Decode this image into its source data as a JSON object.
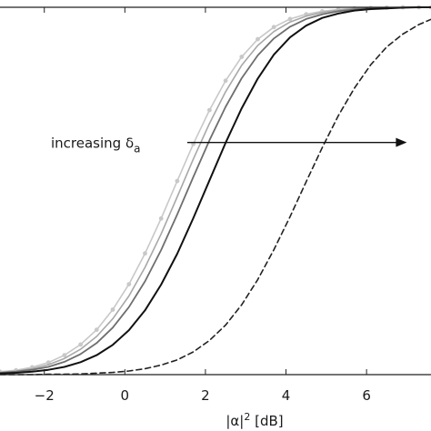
{
  "chart_data": {
    "type": "line",
    "xlabel_main": "|α|",
    "xlabel_sup": "2",
    "xlabel_unit": " [dB]",
    "xlim": [
      -3.1,
      7.6
    ],
    "ylim": [
      0,
      1
    ],
    "x_ticks": [
      -2,
      0,
      2,
      4,
      6
    ],
    "x_tick_labels": [
      "−2",
      "0",
      "2",
      "4",
      "6"
    ],
    "grid": false,
    "annotation": {
      "text": "increasing δ",
      "subscript": "a",
      "arrow_from": [
        1.55,
        0.632
      ],
      "arrow_to": [
        7.0,
        0.632
      ]
    },
    "series": [
      {
        "color": "#c8c8c8",
        "style": "solid",
        "markers": true,
        "width": 1.6,
        "x": [
          -3.1,
          -2.7,
          -2.3,
          -1.9,
          -1.5,
          -1.1,
          -0.7,
          -0.3,
          0.1,
          0.5,
          0.9,
          1.3,
          1.7,
          2.1,
          2.5,
          2.9,
          3.3,
          3.7,
          4.1,
          4.5,
          4.9,
          5.3,
          5.7,
          6.1,
          6.5,
          6.9,
          7.3,
          7.6
        ],
        "y": [
          0.008,
          0.012,
          0.02,
          0.033,
          0.053,
          0.082,
          0.122,
          0.177,
          0.246,
          0.33,
          0.425,
          0.527,
          0.628,
          0.72,
          0.8,
          0.865,
          0.913,
          0.946,
          0.968,
          0.981,
          0.989,
          0.994,
          0.997,
          0.998,
          0.999,
          1.0,
          1.0,
          1.0
        ]
      },
      {
        "color": "#a8a8a8",
        "style": "solid",
        "markers": false,
        "width": 1.6,
        "x": [
          -3.1,
          -2.7,
          -2.3,
          -1.9,
          -1.5,
          -1.1,
          -0.7,
          -0.3,
          0.1,
          0.5,
          0.9,
          1.3,
          1.7,
          2.1,
          2.5,
          2.9,
          3.3,
          3.7,
          4.1,
          4.5,
          4.9,
          5.3,
          5.7,
          6.1,
          6.5,
          6.9,
          7.3,
          7.6
        ],
        "y": [
          0.006,
          0.01,
          0.016,
          0.027,
          0.044,
          0.069,
          0.104,
          0.152,
          0.214,
          0.292,
          0.383,
          0.484,
          0.587,
          0.684,
          0.77,
          0.842,
          0.896,
          0.934,
          0.96,
          0.976,
          0.986,
          0.992,
          0.996,
          0.998,
          0.999,
          1.0,
          1.0,
          1.0
        ]
      },
      {
        "color": "#6e6e6e",
        "style": "solid",
        "markers": false,
        "width": 1.8,
        "x": [
          -3.1,
          -2.7,
          -2.3,
          -1.9,
          -1.5,
          -1.1,
          -0.7,
          -0.3,
          0.1,
          0.5,
          0.9,
          1.3,
          1.7,
          2.1,
          2.5,
          2.9,
          3.3,
          3.7,
          4.1,
          4.5,
          4.9,
          5.3,
          5.7,
          6.1,
          6.5,
          6.9,
          7.3,
          7.6
        ],
        "y": [
          0.005,
          0.008,
          0.013,
          0.021,
          0.035,
          0.056,
          0.086,
          0.128,
          0.184,
          0.254,
          0.339,
          0.436,
          0.538,
          0.638,
          0.729,
          0.807,
          0.869,
          0.915,
          0.947,
          0.968,
          0.981,
          0.989,
          0.994,
          0.997,
          0.998,
          0.999,
          1.0,
          1.0
        ]
      },
      {
        "color": "#111111",
        "style": "solid",
        "markers": false,
        "width": 2.0,
        "x": [
          -3.1,
          -2.7,
          -2.3,
          -1.9,
          -1.5,
          -1.1,
          -0.7,
          -0.3,
          0.1,
          0.5,
          0.9,
          1.3,
          1.7,
          2.1,
          2.5,
          2.9,
          3.3,
          3.7,
          4.1,
          4.5,
          4.9,
          5.3,
          5.7,
          6.1,
          6.5,
          6.9,
          7.3,
          7.6
        ],
        "y": [
          0.003,
          0.005,
          0.008,
          0.013,
          0.021,
          0.034,
          0.053,
          0.081,
          0.121,
          0.175,
          0.245,
          0.329,
          0.426,
          0.529,
          0.631,
          0.725,
          0.806,
          0.871,
          0.918,
          0.95,
          0.971,
          0.983,
          0.991,
          0.995,
          0.997,
          0.999,
          1.0,
          1.0
        ]
      },
      {
        "color": "#222222",
        "style": "dashed",
        "markers": false,
        "width": 1.6,
        "x": [
          -3.1,
          -2.7,
          -2.3,
          -1.9,
          -1.5,
          -1.1,
          -0.7,
          -0.3,
          0.1,
          0.5,
          0.9,
          1.3,
          1.7,
          2.1,
          2.5,
          2.9,
          3.3,
          3.7,
          4.1,
          4.5,
          4.9,
          5.3,
          5.7,
          6.1,
          6.5,
          6.9,
          7.3,
          7.6
        ],
        "y": [
          0.0,
          0.0,
          0.0,
          0.001,
          0.001,
          0.002,
          0.004,
          0.006,
          0.01,
          0.016,
          0.026,
          0.04,
          0.062,
          0.093,
          0.135,
          0.19,
          0.259,
          0.34,
          0.43,
          0.525,
          0.618,
          0.705,
          0.78,
          0.843,
          0.892,
          0.927,
          0.953,
          0.967
        ]
      }
    ]
  }
}
